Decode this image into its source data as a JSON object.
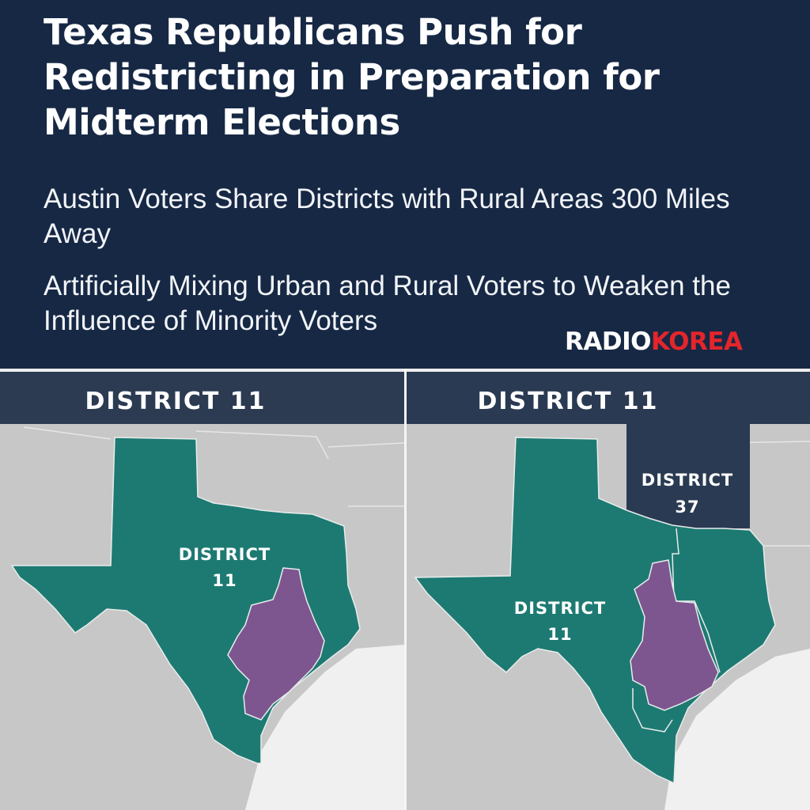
{
  "headline": {
    "title": "Texas Republicans Push for Redistricting in Preparation for Midterm Elections",
    "subtitle_1": "Austin Voters Share Districts with Rural Areas 300 Miles Away",
    "subtitle_2": "Artificially Mixing Urban and Rural Voters to Weaken the Influence of Minority Voters"
  },
  "brand": {
    "part_1": "RADIO",
    "part_2": "KOREA",
    "accent_color": "#e4252c"
  },
  "left_map": {
    "heading": "DISTRICT 11",
    "district_label_line1": "DISTRICT",
    "district_label_line2": "11"
  },
  "right_map": {
    "heading": "DISTRICT 11",
    "district_11_line1": "DISTRICT",
    "district_11_line2": "11",
    "district_37_line1": "DISTRICT",
    "district_37_line2": "37"
  },
  "colors": {
    "background_navy": "#162844",
    "district_11_teal": "#1d7a72",
    "austin_purple": "#7d5690",
    "district_37_navy": "#2a3a52",
    "land_gray": "#c7c7c7",
    "water": "#f0f0f0"
  }
}
